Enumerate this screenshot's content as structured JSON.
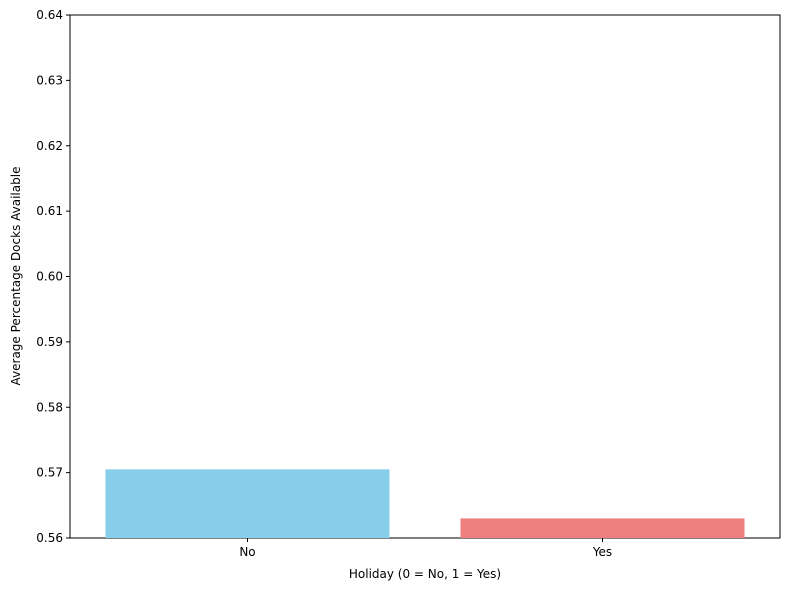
{
  "chart_data": {
    "type": "bar",
    "title": "",
    "xlabel": "Holiday (0 = No, 1 = Yes)",
    "ylabel": "Average Percentage Docks Available",
    "categories": [
      "No",
      "Yes"
    ],
    "values": [
      0.5705,
      0.563
    ],
    "colors": [
      "#87ceeb",
      "#f08080"
    ],
    "ylim": [
      0.56,
      0.64
    ],
    "yticks": [
      "0.56",
      "0.57",
      "0.58",
      "0.59",
      "0.60",
      "0.61",
      "0.62",
      "0.63",
      "0.64"
    ],
    "grid": false,
    "legend": "none"
  }
}
